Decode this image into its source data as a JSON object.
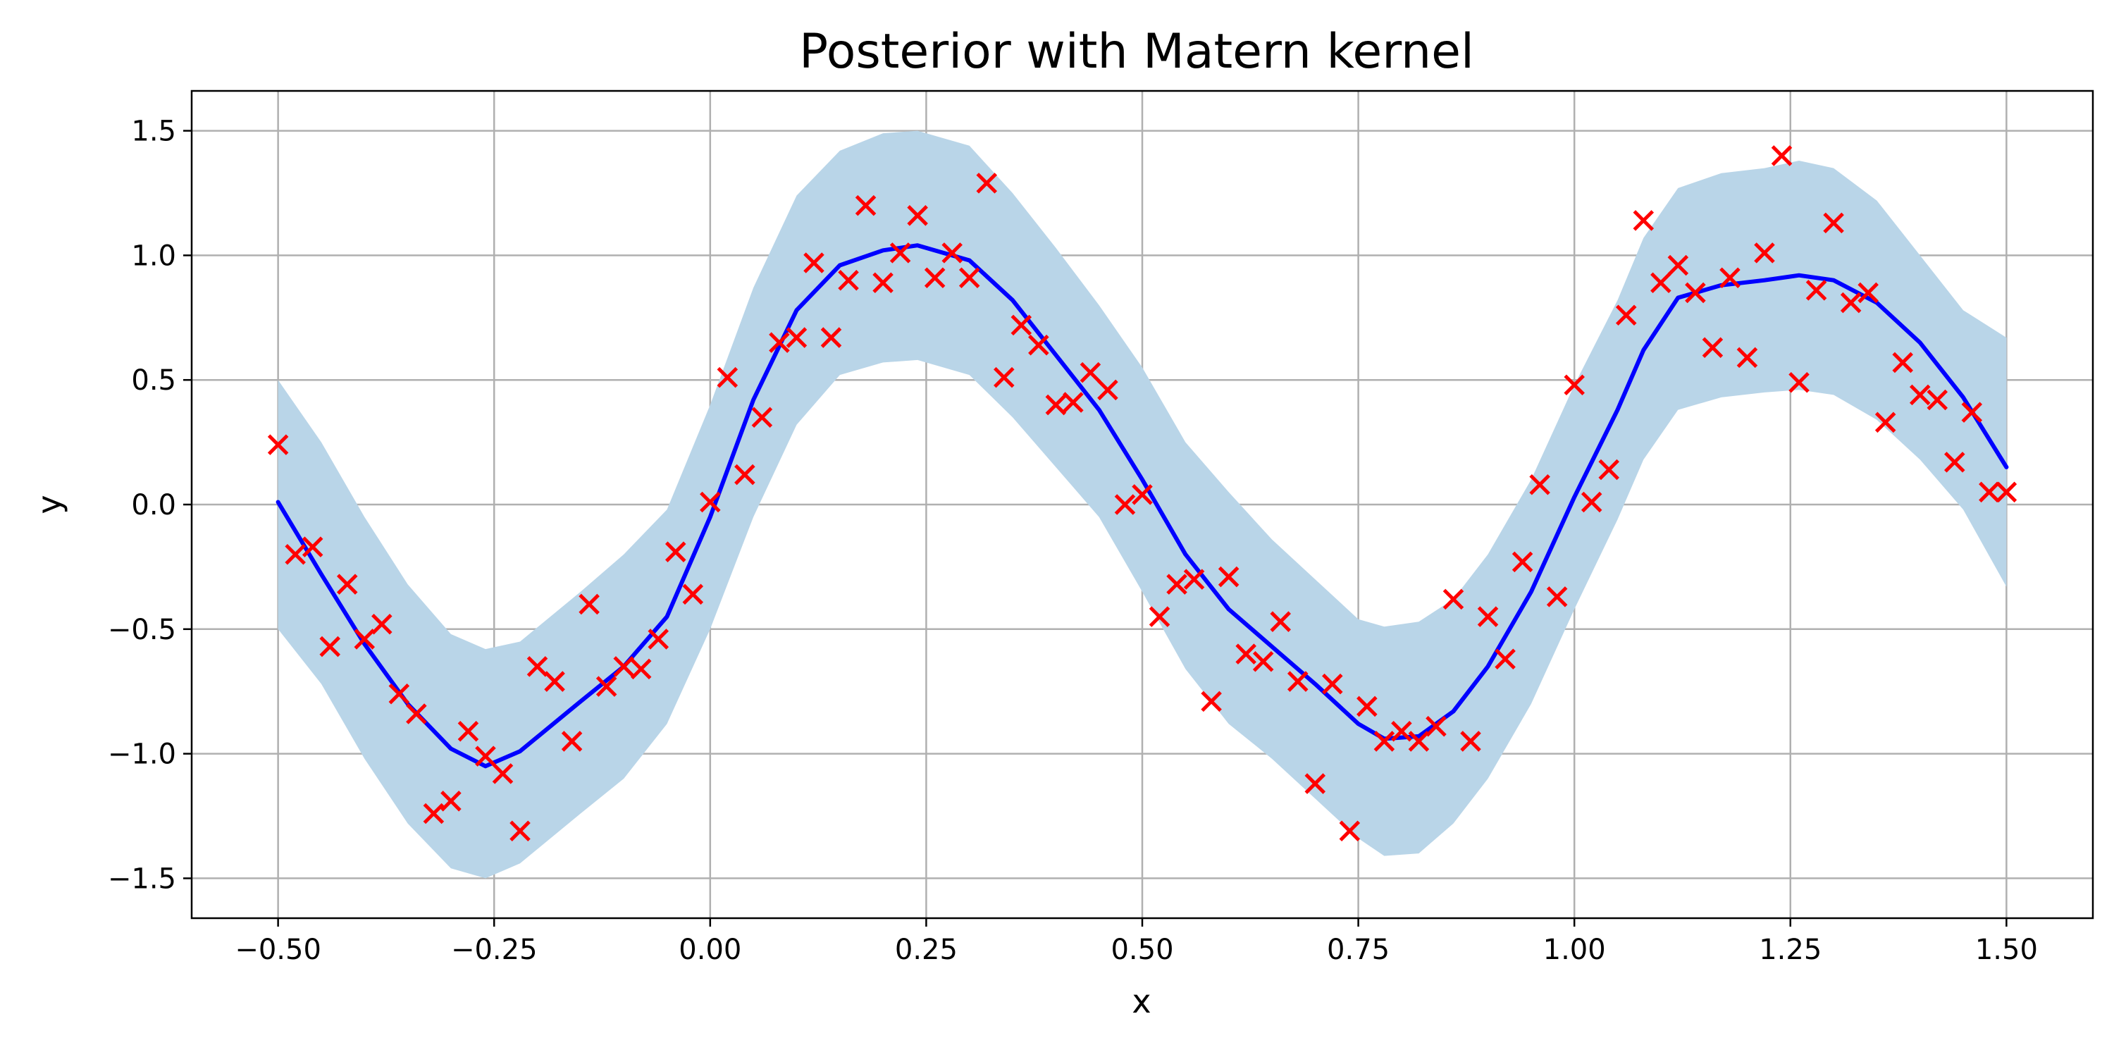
{
  "chart_data": {
    "type": "scatter",
    "title": "Posterior with Matern kernel",
    "xlabel": "x",
    "ylabel": "y",
    "xlim": [
      -0.6,
      1.6
    ],
    "ylim": [
      -1.66,
      1.66
    ],
    "xticks": [
      -0.5,
      -0.25,
      0.0,
      0.25,
      0.5,
      0.75,
      1.0,
      1.25,
      1.5
    ],
    "xtick_labels": [
      "−0.50",
      "−0.25",
      "0.00",
      "0.25",
      "0.50",
      "0.75",
      "1.00",
      "1.25",
      "1.50"
    ],
    "yticks": [
      1.5,
      1.0,
      0.5,
      0.0,
      -0.5,
      -1.0,
      -1.5
    ],
    "ytick_labels": [
      "1.5",
      "1.0",
      "0.5",
      "0.0",
      "−0.5",
      "−1.0",
      "−1.5"
    ],
    "grid": true,
    "colors": {
      "mean": "#0000ff",
      "band": "#b9d5e8",
      "points": "#ff0000",
      "grid": "#b0b0b0"
    },
    "series": [
      {
        "type": "line",
        "x": [
          -0.5,
          -0.45,
          -0.4,
          -0.35,
          -0.3,
          -0.26,
          -0.22,
          -0.15,
          -0.1,
          -0.05,
          0.0,
          0.05,
          0.1,
          0.15,
          0.2,
          0.24,
          0.3,
          0.35,
          0.4,
          0.45,
          0.5,
          0.55,
          0.6,
          0.65,
          0.7,
          0.75,
          0.78,
          0.82,
          0.86,
          0.9,
          0.95,
          1.0,
          1.05,
          1.08,
          1.12,
          1.17,
          1.22,
          1.26,
          1.3,
          1.35,
          1.4,
          1.45,
          1.5
        ],
        "y": [
          0.01,
          -0.28,
          -0.56,
          -0.8,
          -0.98,
          -1.05,
          -0.99,
          -0.79,
          -0.65,
          -0.45,
          -0.05,
          0.42,
          0.78,
          0.96,
          1.02,
          1.04,
          0.98,
          0.82,
          0.6,
          0.38,
          0.1,
          -0.2,
          -0.42,
          -0.57,
          -0.72,
          -0.88,
          -0.94,
          -0.93,
          -0.83,
          -0.65,
          -0.35,
          0.03,
          0.38,
          0.62,
          0.83,
          0.88,
          0.9,
          0.92,
          0.9,
          0.81,
          0.65,
          0.43,
          0.15
        ]
      },
      {
        "type": "band",
        "x": [
          -0.5,
          -0.45,
          -0.4,
          -0.35,
          -0.3,
          -0.26,
          -0.22,
          -0.15,
          -0.1,
          -0.05,
          0.0,
          0.05,
          0.1,
          0.15,
          0.2,
          0.24,
          0.3,
          0.35,
          0.4,
          0.45,
          0.5,
          0.55,
          0.6,
          0.65,
          0.7,
          0.75,
          0.78,
          0.82,
          0.86,
          0.9,
          0.95,
          1.0,
          1.05,
          1.08,
          1.12,
          1.17,
          1.22,
          1.26,
          1.3,
          1.35,
          1.4,
          1.45,
          1.5
        ],
        "upper": [
          0.5,
          0.25,
          -0.05,
          -0.32,
          -0.52,
          -0.58,
          -0.55,
          -0.35,
          -0.2,
          -0.02,
          0.4,
          0.87,
          1.24,
          1.42,
          1.49,
          1.5,
          1.44,
          1.25,
          1.03,
          0.8,
          0.55,
          0.25,
          0.05,
          -0.14,
          -0.3,
          -0.46,
          -0.49,
          -0.47,
          -0.38,
          -0.2,
          0.1,
          0.48,
          0.82,
          1.07,
          1.27,
          1.33,
          1.35,
          1.38,
          1.35,
          1.22,
          1.0,
          0.78,
          0.67
        ],
        "lower": [
          -0.5,
          -0.72,
          -1.02,
          -1.28,
          -1.46,
          -1.5,
          -1.44,
          -1.24,
          -1.1,
          -0.88,
          -0.5,
          -0.05,
          0.32,
          0.52,
          0.57,
          0.58,
          0.52,
          0.35,
          0.15,
          -0.05,
          -0.35,
          -0.66,
          -0.88,
          -1.02,
          -1.18,
          -1.34,
          -1.41,
          -1.4,
          -1.28,
          -1.1,
          -0.8,
          -0.42,
          -0.06,
          0.18,
          0.38,
          0.43,
          0.45,
          0.46,
          0.44,
          0.34,
          0.18,
          -0.02,
          -0.33
        ]
      },
      {
        "type": "scatter",
        "x": [
          -0.5,
          -0.48,
          -0.46,
          -0.44,
          -0.42,
          -0.4,
          -0.38,
          -0.36,
          -0.34,
          -0.32,
          -0.3,
          -0.28,
          -0.26,
          -0.24,
          -0.22,
          -0.2,
          -0.18,
          -0.16,
          -0.14,
          -0.12,
          -0.1,
          -0.08,
          -0.06,
          -0.04,
          -0.02,
          0.0,
          0.02,
          0.04,
          0.06,
          0.08,
          0.1,
          0.12,
          0.14,
          0.16,
          0.18,
          0.2,
          0.22,
          0.24,
          0.26,
          0.28,
          0.3,
          0.32,
          0.34,
          0.36,
          0.38,
          0.4,
          0.42,
          0.44,
          0.46,
          0.48,
          0.5,
          0.52,
          0.54,
          0.56,
          0.58,
          0.6,
          0.62,
          0.64,
          0.66,
          0.68,
          0.7,
          0.72,
          0.74,
          0.76,
          0.78,
          0.8,
          0.82,
          0.84,
          0.86,
          0.88,
          0.9,
          0.92,
          0.94,
          0.96,
          0.98,
          1.0,
          1.02,
          1.04,
          1.06,
          1.08,
          1.1,
          1.12,
          1.14,
          1.16,
          1.18,
          1.2,
          1.22,
          1.24,
          1.26,
          1.28,
          1.3,
          1.32,
          1.34,
          1.36,
          1.38,
          1.4,
          1.42,
          1.44,
          1.46,
          1.48,
          1.5
        ],
        "y": [
          0.24,
          -0.2,
          -0.17,
          -0.57,
          -0.32,
          -0.54,
          -0.48,
          -0.76,
          -0.84,
          -1.24,
          -1.19,
          -0.91,
          -1.01,
          -1.08,
          -1.31,
          -0.65,
          -0.71,
          -0.95,
          -0.4,
          -0.73,
          -0.65,
          -0.66,
          -0.54,
          -0.19,
          -0.36,
          0.01,
          0.51,
          0.12,
          0.35,
          0.65,
          0.67,
          0.97,
          0.67,
          0.9,
          1.2,
          0.89,
          1.01,
          1.16,
          0.91,
          1.01,
          0.91,
          1.29,
          0.51,
          0.72,
          0.64,
          0.4,
          0.41,
          0.53,
          0.46,
          0.0,
          0.04,
          -0.45,
          -0.32,
          -0.3,
          -0.79,
          -0.29,
          -0.6,
          -0.63,
          -0.47,
          -0.71,
          -1.12,
          -0.72,
          -1.31,
          -0.81,
          -0.95,
          -0.91,
          -0.95,
          -0.89,
          -0.38,
          -0.95,
          -0.45,
          -0.62,
          -0.23,
          0.08,
          -0.37,
          0.48,
          0.01,
          0.14,
          0.76,
          1.14,
          0.89,
          0.96,
          0.85,
          0.63,
          0.91,
          0.59,
          1.01,
          1.4,
          0.49,
          0.86,
          1.13,
          0.81,
          0.85,
          0.33,
          0.57,
          0.44,
          0.42,
          0.17,
          0.37,
          0.05,
          0.05
        ]
      }
    ]
  }
}
